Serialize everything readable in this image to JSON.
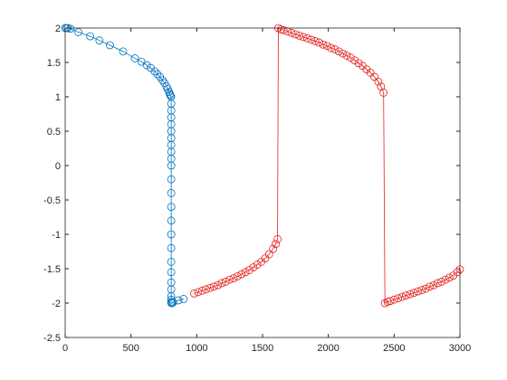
{
  "chart_data": {
    "type": "line",
    "marker": "circle",
    "box": true,
    "xlim": [
      0,
      3000
    ],
    "xticks": [
      0,
      500,
      1000,
      1500,
      2000,
      2500,
      3000
    ],
    "ylim": [
      -2.5,
      2
    ],
    "yticks": [
      -2.5,
      -2,
      -1.5,
      -1,
      -0.5,
      0,
      0.5,
      1,
      1.5,
      2
    ],
    "series": [
      {
        "color": "#0072bd",
        "x": [
          0,
          10,
          20,
          40,
          100,
          190,
          260,
          340,
          440,
          530,
          580,
          620,
          650,
          680,
          700,
          720,
          740,
          755,
          770,
          780,
          790,
          795,
          800,
          805,
          806,
          806,
          806,
          806,
          806,
          806,
          806,
          806,
          806,
          806,
          806,
          806,
          806,
          806,
          806,
          806,
          806,
          806,
          806,
          806,
          806,
          806,
          806,
          807,
          812,
          820,
          860,
          900
        ],
        "values": [
          2,
          2,
          2,
          1.99,
          1.94,
          1.88,
          1.82,
          1.75,
          1.66,
          1.56,
          1.51,
          1.46,
          1.42,
          1.37,
          1.33,
          1.29,
          1.24,
          1.2,
          1.15,
          1.11,
          1.07,
          1.04,
          1.02,
          1,
          0.9,
          0.8,
          0.7,
          0.6,
          0.5,
          0.4,
          0.3,
          0.2,
          0.1,
          0,
          -0.2,
          -0.4,
          -0.6,
          -0.8,
          -1,
          -1.2,
          -1.4,
          -1.55,
          -1.7,
          -1.8,
          -1.9,
          -1.95,
          -1.98,
          -2,
          -2,
          -1.99,
          -1.96,
          -1.94
        ]
      },
      {
        "color": "#e3211c",
        "x": [
          980,
          1010,
          1040,
          1070,
          1100,
          1130,
          1160,
          1190,
          1220,
          1250,
          1280,
          1310,
          1340,
          1370,
          1400,
          1430,
          1460,
          1490,
          1520,
          1550,
          1580,
          1600,
          1614,
          1620,
          1640,
          1660,
          1690,
          1720,
          1750,
          1780,
          1810,
          1840,
          1870,
          1900,
          1930,
          1960,
          1990,
          2020,
          2050,
          2080,
          2110,
          2140,
          2170,
          2200,
          2230,
          2260,
          2290,
          2320,
          2350,
          2380,
          2400,
          2420,
          2430,
          2450,
          2470,
          2500,
          2530,
          2560,
          2590,
          2620,
          2650,
          2680,
          2710,
          2740,
          2770,
          2800,
          2830,
          2860,
          2890,
          2920,
          2950,
          2980,
          3000
        ],
        "values": [
          -1.86,
          -1.84,
          -1.82,
          -1.8,
          -1.78,
          -1.76,
          -1.74,
          -1.71,
          -1.69,
          -1.66,
          -1.64,
          -1.61,
          -1.58,
          -1.55,
          -1.52,
          -1.48,
          -1.44,
          -1.4,
          -1.35,
          -1.29,
          -1.21,
          -1.14,
          -1.07,
          2,
          1.98,
          1.97,
          1.95,
          1.93,
          1.91,
          1.89,
          1.87,
          1.85,
          1.83,
          1.81,
          1.79,
          1.76,
          1.74,
          1.71,
          1.69,
          1.66,
          1.63,
          1.6,
          1.57,
          1.53,
          1.49,
          1.45,
          1.4,
          1.35,
          1.29,
          1.22,
          1.15,
          1.06,
          -2,
          -1.98,
          -1.97,
          -1.95,
          -1.93,
          -1.91,
          -1.89,
          -1.87,
          -1.85,
          -1.83,
          -1.81,
          -1.79,
          -1.76,
          -1.74,
          -1.71,
          -1.69,
          -1.66,
          -1.63,
          -1.6,
          -1.55,
          -1.51
        ]
      }
    ]
  }
}
